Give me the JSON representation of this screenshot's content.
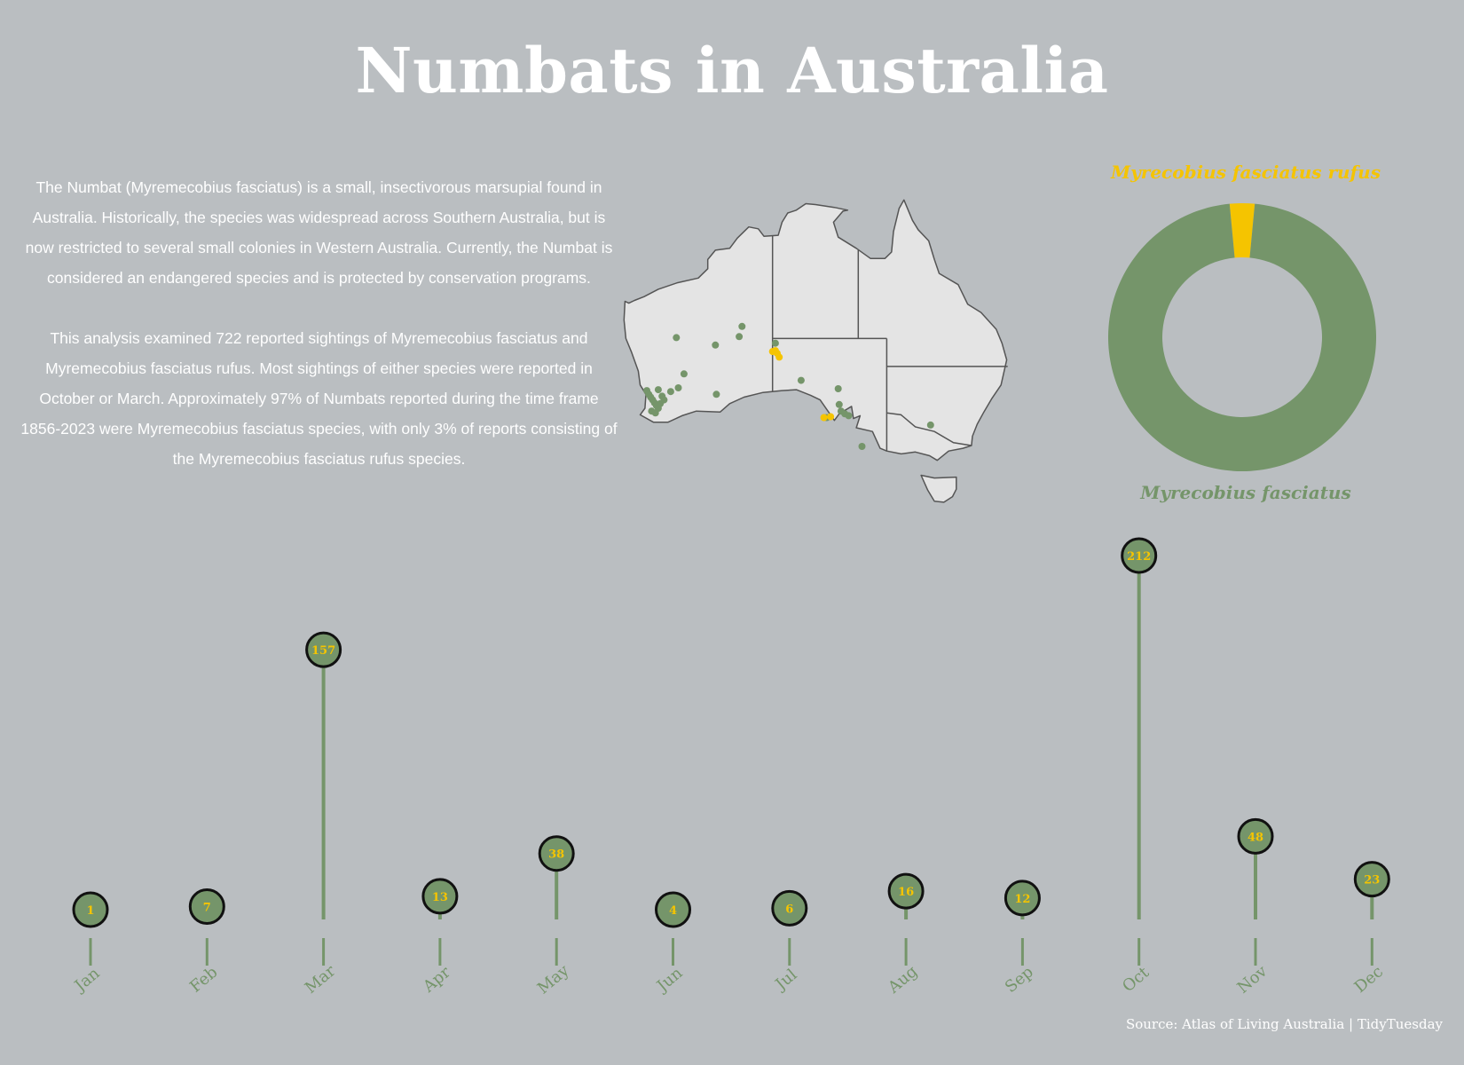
{
  "title": "Numbats in Australia",
  "description": {
    "paragraph1": "The Numbat (Myremecobius fasciatus) is a small, insectivorous marsupial found in Australia. Historically, the species was widespread across Southern Australia, but is now restricted to several small colonies in Western Australia. Currently, the Numbat is considered an endangered species and is protected by conservation programs.",
    "paragraph2": "This analysis examined 722 reported sightings of Myremecobius fasciatus and Myremecobius fasciatus rufus. Most sightings of either species were reported in October or March. Approximately 97% of Numbats reported during the time frame 1856-2023 were Myremecobius fasciatus species, with only 3% of reports consisting of the Myremecobius fasciatus rufus species."
  },
  "colors": {
    "background": "#babec1",
    "fasciatus": "#75956a",
    "rufus": "#f5c400",
    "map_fill": "#e4e4e4",
    "map_stroke": "#555555"
  },
  "source": "Source: Atlas of Living Australia | TidyTuesday",
  "chart_data": [
    {
      "type": "scatter",
      "subtype": "map",
      "region": "Australia",
      "series": [
        {
          "name": "Myrecobius fasciatus",
          "color": "#75956a",
          "points": [
            {
              "lon": 115.8,
              "lat": -31.6
            },
            {
              "lon": 116.0,
              "lat": -32.0
            },
            {
              "lon": 116.2,
              "lat": -32.3
            },
            {
              "lon": 116.4,
              "lat": -32.6
            },
            {
              "lon": 116.6,
              "lat": -32.9
            },
            {
              "lon": 116.8,
              "lat": -33.2
            },
            {
              "lon": 117.0,
              "lat": -33.5
            },
            {
              "lon": 116.3,
              "lat": -33.8
            },
            {
              "lon": 116.7,
              "lat": -34.0
            },
            {
              "lon": 117.2,
              "lat": -33.0
            },
            {
              "lon": 117.4,
              "lat": -32.2
            },
            {
              "lon": 117.0,
              "lat": -31.5
            },
            {
              "lon": 117.6,
              "lat": -32.6
            },
            {
              "lon": 118.3,
              "lat": -31.7
            },
            {
              "lon": 119.1,
              "lat": -31.3
            },
            {
              "lon": 119.7,
              "lat": -29.8
            },
            {
              "lon": 118.9,
              "lat": -25.9
            },
            {
              "lon": 123.0,
              "lat": -26.7
            },
            {
              "lon": 125.5,
              "lat": -25.8
            },
            {
              "lon": 125.8,
              "lat": -24.7
            },
            {
              "lon": 129.3,
              "lat": -26.5
            },
            {
              "lon": 123.1,
              "lat": -32.0
            },
            {
              "lon": 132.0,
              "lat": -30.5
            },
            {
              "lon": 135.9,
              "lat": -31.4
            },
            {
              "lon": 136.0,
              "lat": -33.1
            },
            {
              "lon": 136.2,
              "lat": -33.8
            },
            {
              "lon": 136.6,
              "lat": -34.1
            },
            {
              "lon": 137.0,
              "lat": -34.3
            },
            {
              "lon": 134.7,
              "lat": -34.5
            },
            {
              "lon": 138.4,
              "lat": -37.6
            },
            {
              "lon": 145.6,
              "lat": -35.3
            }
          ]
        },
        {
          "name": "Myrecobius fasciatus rufus",
          "color": "#f5c400",
          "points": [
            {
              "lon": 129.0,
              "lat": -27.4
            },
            {
              "lon": 129.3,
              "lat": -27.3
            },
            {
              "lon": 129.5,
              "lat": -27.6
            },
            {
              "lon": 129.7,
              "lat": -28.0
            },
            {
              "lon": 134.4,
              "lat": -34.5
            },
            {
              "lon": 135.1,
              "lat": -34.4
            }
          ]
        }
      ]
    },
    {
      "type": "pie",
      "subtype": "donut",
      "slices": [
        {
          "label": "Myrecobius fasciatus",
          "value": 97,
          "color": "#75956a"
        },
        {
          "label": "Myrecobius fasciatus rufus",
          "value": 3,
          "color": "#f5c400"
        }
      ]
    },
    {
      "type": "bar",
      "subtype": "lollipop",
      "categories": [
        "Jan",
        "Feb",
        "Mar",
        "Apr",
        "May",
        "Jun",
        "Jul",
        "Aug",
        "Sep",
        "Oct",
        "Nov",
        "Dec"
      ],
      "values": [
        1,
        7,
        157,
        13,
        38,
        4,
        6,
        16,
        12,
        212,
        48,
        23
      ],
      "ylim": [
        0,
        212
      ]
    }
  ]
}
